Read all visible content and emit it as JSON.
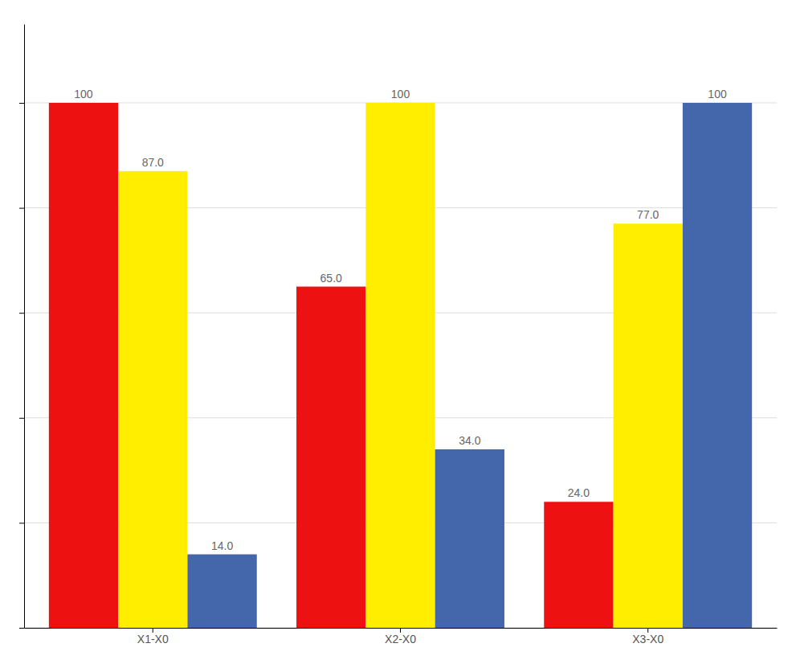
{
  "chart_data": {
    "type": "bar",
    "categories": [
      "X1-X0",
      "X2-X0",
      "X3-X0"
    ],
    "series": [
      {
        "color": "#ee1111",
        "values": [
          100,
          65,
          24
        ],
        "value_labels": [
          "100",
          "65.0",
          "24.0"
        ]
      },
      {
        "color": "#ffee00",
        "values": [
          87,
          100,
          77
        ],
        "value_labels": [
          "87.0",
          "100",
          "77.0"
        ]
      },
      {
        "color": "#4466aa",
        "values": [
          14,
          34,
          100
        ],
        "value_labels": [
          "14.0",
          "34.0",
          "100"
        ]
      }
    ],
    "ylim": [
      0,
      115
    ],
    "yticks": [
      0,
      20,
      40,
      60,
      80,
      100
    ],
    "grid": true,
    "data_labels": true,
    "tick_labels": "x"
  }
}
